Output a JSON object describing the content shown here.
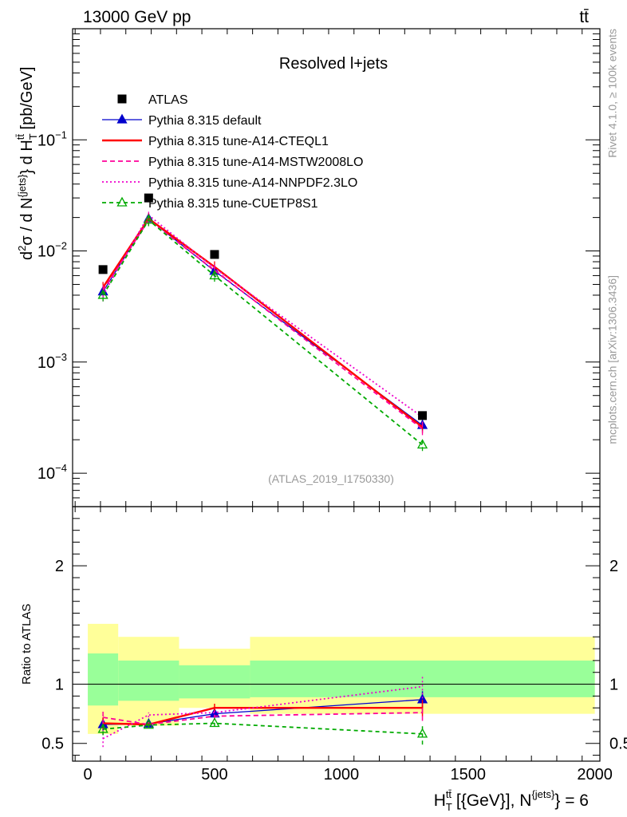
{
  "header": {
    "energy_label": "13000 GeV pp",
    "process_label": "tt̄"
  },
  "side_labels": {
    "rivet": "Rivet 4.1.0, ≥ 100k events",
    "mcplots": "mcplots.cern.ch [arXiv:1306.3436]"
  },
  "chart_data": {
    "type": "line",
    "title": "Resolved l+jets",
    "analysis_id": "(ATLAS_2019_I1750330)",
    "xlabel": "H_T^{tt̄} [{GeV}], N^{jets} = 6",
    "xlabel_parts": {
      "main": "H",
      "sub": "T",
      "sup": "tt̄",
      "rest": " [{GeV}], N",
      "sup2": "{jets}",
      "tail": "} = 6"
    },
    "ylabel": "d²σ / d N^{jets} } d H_T^{tt̄} [pb/GeV]",
    "ylabel_parts": {
      "a": "d",
      "a_sup": "2",
      "b": "σ / d N",
      "b_sup": "{jets}",
      "c": "} d H",
      "c_sub": "T",
      "c_sup": "tt̄",
      "d": " [pb/GeV]"
    },
    "ratio_ylabel": "Ratio to ATLAS",
    "xlim": [
      -60,
      2020
    ],
    "ylim": [
      5e-05,
      1.0
    ],
    "ratio_ylim": [
      0.35,
      2.5
    ],
    "x_ticks": [
      0,
      500,
      1000,
      1500,
      2000
    ],
    "x_tick_labels": [
      "0",
      "500",
      "1000",
      "1500",
      "2000"
    ],
    "y_ticks": [
      {
        "value": 0.1,
        "base": "10",
        "exp": "−1"
      },
      {
        "value": 0.01,
        "base": "10",
        "exp": "−2"
      },
      {
        "value": 0.001,
        "base": "10",
        "exp": "−3"
      },
      {
        "value": 0.0001,
        "base": "10",
        "exp": "−4"
      }
    ],
    "ratio_ticks": [
      0.5,
      1,
      2
    ],
    "ratio_tick_labels": [
      "0.5",
      "1",
      "2"
    ],
    "bins": [
      {
        "lo": 0,
        "hi": 120,
        "center": 60
      },
      {
        "lo": 120,
        "hi": 360,
        "center": 240
      },
      {
        "lo": 360,
        "hi": 640,
        "center": 500
      },
      {
        "lo": 640,
        "hi": 2000,
        "center": 1320
      }
    ],
    "data": {
      "name": "ATLAS",
      "x": [
        60,
        240,
        500,
        1320
      ],
      "y": [
        0.0068,
        0.03,
        0.0093,
        0.00033
      ]
    },
    "bands": {
      "green_low": [
        0.82,
        0.86,
        0.88,
        0.89
      ],
      "green_high": [
        1.26,
        1.2,
        1.16,
        1.2
      ],
      "yellow_low": [
        0.58,
        0.65,
        0.8,
        0.75
      ],
      "yellow_high": [
        1.51,
        1.4,
        1.3,
        1.4
      ]
    },
    "series": [
      {
        "name": "Pythia 8.315 default",
        "color": "#0000cc",
        "dash": "",
        "marker": "triangle-filled",
        "x": [
          60,
          240,
          500,
          1320
        ],
        "y": [
          0.0043,
          0.0195,
          0.0066,
          0.00027
        ],
        "ratio": [
          0.66,
          0.665,
          0.75,
          0.87
        ],
        "ratio_err": [
          0.05,
          0.02,
          0.03,
          0.07
        ]
      },
      {
        "name": "Pythia 8.315 tune-A14-CTEQL1",
        "color": "#ff0000",
        "dash": "",
        "marker": "none",
        "x": [
          60,
          240,
          500,
          1320
        ],
        "y": [
          0.0047,
          0.0195,
          0.0072,
          0.00026
        ],
        "ratio": [
          0.67,
          0.66,
          0.8,
          0.8
        ],
        "ratio_err": [
          0.05,
          0.02,
          0.035,
          0.07
        ]
      },
      {
        "name": "Pythia 8.315 tune-A14-MSTW2008LO",
        "color": "#ff0099",
        "dash": "6,4",
        "marker": "none",
        "x": [
          60,
          240,
          500,
          1320
        ],
        "y": [
          0.0044,
          0.019,
          0.0067,
          0.00025
        ],
        "ratio": [
          0.72,
          0.66,
          0.73,
          0.76
        ],
        "ratio_err": [
          0.06,
          0.02,
          0.03,
          0.07
        ]
      },
      {
        "name": "Pythia 8.315 tune-A14-NNPDF2.3LO",
        "color": "#ee00cc",
        "dash": "2,3",
        "marker": "none",
        "x": [
          60,
          240,
          500,
          1320
        ],
        "y": [
          0.004,
          0.021,
          0.007,
          0.00032
        ],
        "ratio": [
          0.54,
          0.74,
          0.76,
          0.98
        ],
        "ratio_err": [
          0.07,
          0.02,
          0.03,
          0.1
        ]
      },
      {
        "name": "Pythia 8.315 tune-CUETP8S1",
        "color": "#00aa00",
        "dash": "5,4",
        "marker": "triangle-open",
        "x": [
          60,
          240,
          500,
          1320
        ],
        "y": [
          0.004,
          0.019,
          0.006,
          0.00018
        ],
        "ratio": [
          0.62,
          0.655,
          0.67,
          0.58
        ],
        "ratio_err": [
          0.05,
          0.02,
          0.03,
          0.09
        ]
      }
    ]
  }
}
